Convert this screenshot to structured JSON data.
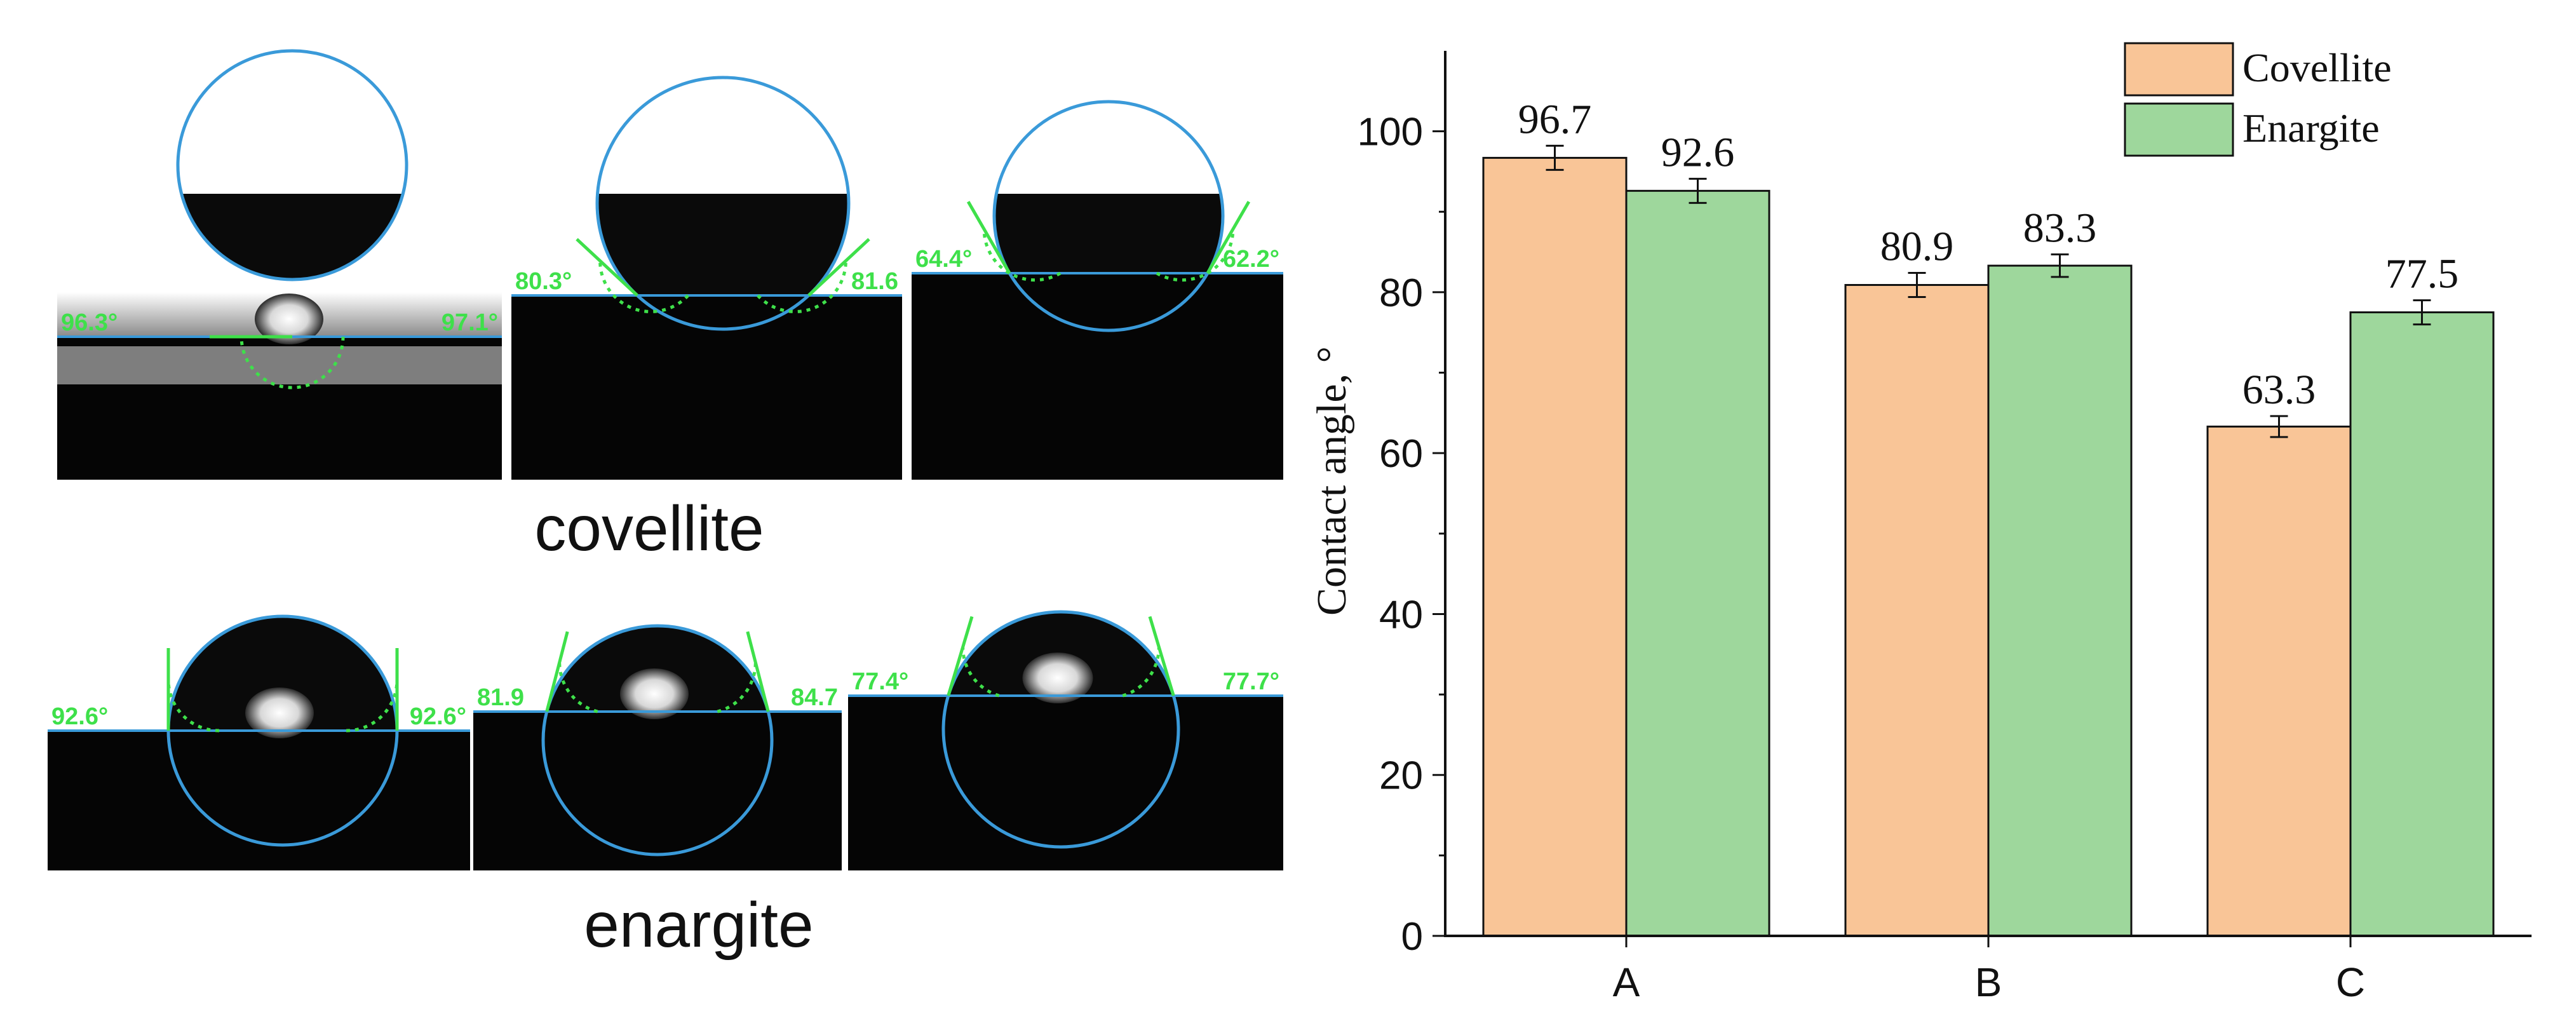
{
  "photos": {
    "covellite_label": "covellite",
    "enargite_label": "enargite",
    "covellite_angles": [
      {
        "left": "96.3°",
        "right": "97.1°"
      },
      {
        "left": "80.3°",
        "right": "81.6"
      },
      {
        "left": "64.4°",
        "right": "62.2°"
      }
    ],
    "enargite_angles": [
      {
        "left": "92.6°",
        "right": "92.6°"
      },
      {
        "left": "81.9",
        "right": "84.7"
      },
      {
        "left": "77.4°",
        "right": "77.7°"
      }
    ]
  },
  "colors": {
    "covellite": "#f9c597",
    "enargite": "#9ed79c",
    "circle": "#3a9ad9",
    "angle_text": "#3ee04a"
  },
  "chart_data": {
    "type": "bar",
    "categories": [
      "A",
      "B",
      "C"
    ],
    "series": [
      {
        "name": "Covellite",
        "values": [
          96.7,
          80.9,
          63.3
        ],
        "errors": [
          1.5,
          1.5,
          1.3
        ]
      },
      {
        "name": "Enargite",
        "values": [
          92.6,
          83.3,
          77.5
        ],
        "errors": [
          1.5,
          1.4,
          1.5
        ]
      }
    ],
    "value_labels": [
      [
        "96.7",
        "80.9",
        "63.3"
      ],
      [
        "92.6",
        "83.3",
        "77.5"
      ]
    ],
    "ylabel": "Contact angle, °",
    "xlabel": "",
    "ylim": [
      0,
      110
    ],
    "yticks": [
      0,
      20,
      40,
      60,
      80,
      100
    ],
    "legend": "top-right",
    "grid": false
  }
}
